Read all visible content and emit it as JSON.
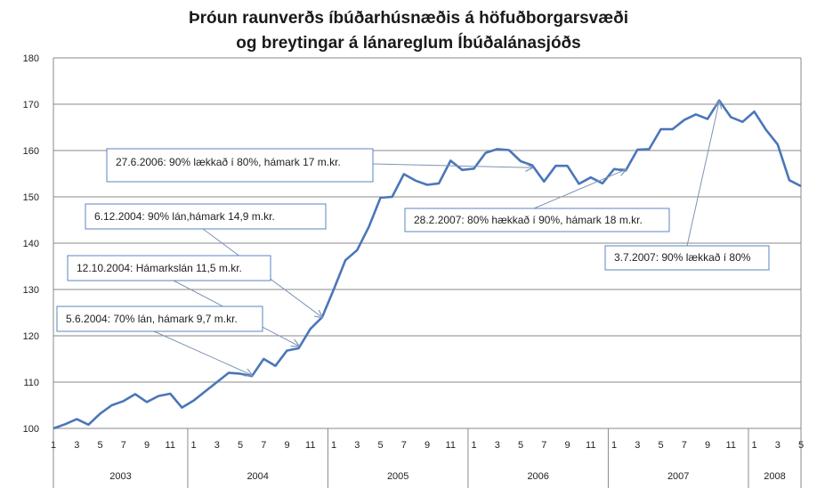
{
  "chart_data": {
    "type": "line",
    "title": [
      "Þróun raunverðs íbúðarhúsnæðis á höfuðborgarsvæði",
      "og breytingar á lánareglum Íbúðalánasjóðs"
    ],
    "xlabel": "",
    "ylabel": "",
    "ylim": [
      100,
      180
    ],
    "y_ticks": [
      100,
      110,
      120,
      130,
      140,
      150,
      160,
      170,
      180
    ],
    "grid": "horizontal",
    "legend": "none",
    "x_tick_labels": [
      "1",
      "3",
      "5",
      "7",
      "9",
      "11",
      "1",
      "3",
      "5",
      "7",
      "9",
      "11",
      "1",
      "3",
      "5",
      "7",
      "9",
      "11",
      "1",
      "3",
      "5",
      "7",
      "9",
      "11",
      "1",
      "3",
      "5",
      "7",
      "9",
      "11",
      "1",
      "3",
      "5"
    ],
    "year_labels": [
      "2003",
      "2004",
      "2005",
      "2006",
      "2007",
      "2008"
    ],
    "x": [
      "2003-01",
      "2003-02",
      "2003-03",
      "2003-04",
      "2003-05",
      "2003-06",
      "2003-07",
      "2003-08",
      "2003-09",
      "2003-10",
      "2003-11",
      "2003-12",
      "2004-01",
      "2004-02",
      "2004-03",
      "2004-04",
      "2004-05",
      "2004-06",
      "2004-07",
      "2004-08",
      "2004-09",
      "2004-10",
      "2004-11",
      "2004-12",
      "2005-01",
      "2005-02",
      "2005-03",
      "2005-04",
      "2005-05",
      "2005-06",
      "2005-07",
      "2005-08",
      "2005-09",
      "2005-10",
      "2005-11",
      "2005-12",
      "2006-01",
      "2006-02",
      "2006-03",
      "2006-04",
      "2006-05",
      "2006-06",
      "2006-07",
      "2006-08",
      "2006-09",
      "2006-10",
      "2006-11",
      "2006-12",
      "2007-01",
      "2007-02",
      "2007-03",
      "2007-04",
      "2007-05",
      "2007-06",
      "2007-07",
      "2007-08",
      "2007-09",
      "2007-10",
      "2007-11",
      "2007-12",
      "2008-01",
      "2008-02",
      "2008-03",
      "2008-04",
      "2008-05"
    ],
    "series": [
      {
        "name": "",
        "values": [
          100.0,
          100.9,
          102.0,
          100.8,
          103.2,
          105.0,
          105.9,
          107.4,
          105.7,
          107.0,
          107.5,
          104.5,
          106.0,
          108.0,
          110.0,
          112.0,
          111.8,
          111.3,
          115.0,
          113.5,
          116.8,
          117.3,
          121.5,
          124.0,
          130.0,
          136.3,
          138.5,
          143.5,
          149.8,
          150.0,
          154.9,
          153.5,
          152.6,
          152.9,
          157.8,
          155.8,
          156.1,
          159.5,
          160.3,
          160.1,
          157.7,
          156.8,
          153.3,
          156.7,
          156.7,
          152.8,
          154.2,
          152.9,
          156.0,
          155.7,
          160.2,
          160.3,
          164.6,
          164.6,
          166.6,
          167.8,
          166.8,
          170.8,
          167.2,
          166.2,
          168.4,
          164.5,
          161.3,
          153.6,
          152.3
        ],
        "color": "#4a76b9"
      }
    ],
    "annotations": [
      {
        "text": "27.6.2006: 90% lækkað í 80%, hámark 17 m.kr.",
        "target_x": "2006-06",
        "target_y": 156.3
      },
      {
        "text": "6.12.2004: 90% lán,hámark 14,9 m.kr.",
        "target_x": "2004-12",
        "target_y": 124.0
      },
      {
        "text": "12.10.2004: Hámarkslán 11,5 m.kr.",
        "target_x": "2004-10",
        "target_y": 117.8
      },
      {
        "text": "5.6.2004: 70%  lán, hámark 9,7 m.kr.",
        "target_x": "2004-06",
        "target_y": 111.5
      },
      {
        "text": "28.2.2007: 80% hækkað í 90%, hámark 18 m.kr.",
        "target_x": "2007-02",
        "target_y": 155.9
      },
      {
        "text": "3.7.2007: 90% lækkað í 80%",
        "target_x": "2007-10",
        "target_y": 170.6
      }
    ],
    "colors": {
      "line": "#4a76b9",
      "gridline": "#8a8a8a",
      "annotation_border": "#5b84c1",
      "arrow": "#7d93b5"
    }
  }
}
